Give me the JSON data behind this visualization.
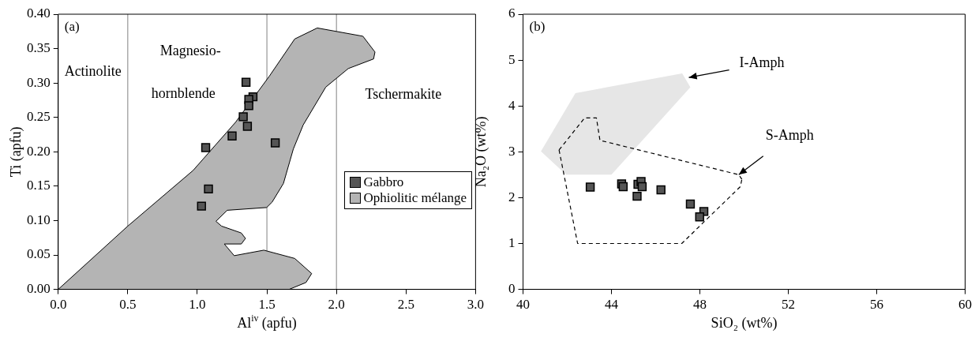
{
  "chart_data": [
    {
      "type": "scatter",
      "xlabel": "Al$^{iv}$ (apfu)",
      "ylabel": "Ti (apfu)",
      "legend": "right",
      "grid": false,
      "xlim": [
        0,
        3
      ],
      "xticks": [
        {
          "value": 0,
          "label": "0.0"
        },
        {
          "value": 0.5,
          "label": "0.5"
        },
        {
          "value": 1,
          "label": "1.0"
        },
        {
          "value": 1.5,
          "label": "1.5"
        },
        {
          "value": 2,
          "label": "2.0"
        },
        {
          "value": 2.5,
          "label": "2.5"
        },
        {
          "value": 3,
          "label": "3.0"
        }
      ],
      "ylim": [
        0,
        0.4
      ],
      "yticks": [
        {
          "value": 0,
          "label": "0.00"
        },
        {
          "value": 0.05,
          "label": "0.05"
        },
        {
          "value": 0.1,
          "label": "0.10"
        },
        {
          "value": 0.15,
          "label": "0.15"
        },
        {
          "value": 0.2,
          "label": "0.20"
        },
        {
          "value": 0.25,
          "label": "0.25"
        },
        {
          "value": 0.3,
          "label": "0.30"
        },
        {
          "value": 0.35,
          "label": "0.35"
        },
        {
          "value": 0.4,
          "label": "0.40"
        }
      ],
      "ref_lines": [
        {
          "axis": "x",
          "value": 0.5,
          "color": "#808080"
        },
        {
          "axis": "x",
          "value": 1.5,
          "color": "#808080"
        },
        {
          "axis": "x",
          "value": 2,
          "color": "#808080"
        }
      ],
      "annotations": [
        "(a)",
        "Actinolite",
        "Magnesio-",
        "hornblende",
        "Tschermakite"
      ],
      "series": [
        {
          "name": "Gabbro",
          "type": "scatter",
          "marker": "square",
          "color": "#555555",
          "x": [
            1.35,
            1.4,
            1.37,
            1.37,
            1.33,
            1.36,
            1.25,
            1.06,
            1.56,
            1.08,
            1.03
          ],
          "values": [
            0.301,
            0.28,
            0.276,
            0.267,
            0.251,
            0.237,
            0.223,
            0.206,
            0.213,
            0.146,
            0.121
          ]
        },
        {
          "name": "Ophiolitic mélange",
          "type": "area",
          "color": "#b4b4b4",
          "line_style": "solid",
          "x": [
            0,
            0.5,
            0.97,
            1.275,
            1.518,
            1.7,
            1.862,
            2.19,
            2.277,
            2.267,
            2.085,
            1.923,
            1.761,
            1.69,
            1.619,
            1.538,
            1.498,
            1.215,
            1.134,
            1.174,
            1.316,
            1.346,
            1.316,
            1.194,
            1.265,
            1.478,
            1.7,
            1.822,
            1.781,
            1.66,
            0
          ],
          "values": [
            0,
            0.092,
            0.173,
            0.243,
            0.31,
            0.364,
            0.38,
            0.368,
            0.345,
            0.335,
            0.321,
            0.294,
            0.239,
            0.204,
            0.154,
            0.127,
            0.119,
            0.115,
            0.099,
            0.092,
            0.082,
            0.074,
            0.066,
            0.066,
            0.049,
            0.057,
            0.045,
            0.023,
            0.01,
            0,
            0
          ]
        }
      ]
    },
    {
      "type": "scatter",
      "xlabel": "SiO₂ (wt%)",
      "ylabel": "Na₂O (wt%)",
      "grid": false,
      "xlim": [
        40,
        60
      ],
      "xticks": [
        40,
        44,
        48,
        52,
        56,
        60
      ],
      "ylim": [
        0,
        6
      ],
      "yticks": [
        0,
        1,
        2,
        3,
        4,
        5,
        6
      ],
      "annotations": [
        "(b)",
        {
          "text": "I-Amph",
          "x": 47.5,
          "y": 4.62
        },
        {
          "text": "S-Amph",
          "x": 49.76,
          "y": 2.5
        }
      ],
      "series": [
        {
          "type": "scatter",
          "marker": "square",
          "color": "#555555",
          "x": [
            43.04,
            44.46,
            44.53,
            45.2,
            45.34,
            45.39,
            45.16,
            46.24,
            47.57,
            48.18,
            47.99
          ],
          "values": [
            2.23,
            2.3,
            2.24,
            2.29,
            2.35,
            2.24,
            2.03,
            2.17,
            1.86,
            1.7,
            1.58
          ]
        },
        {
          "type": "line",
          "color": "#000000",
          "line_style": "dashed",
          "x": [
            41.63,
            42.79,
            43.32,
            43.48,
            49.76,
            49.9
          ],
          "values": [
            3.04,
            3.74,
            3.74,
            3.25,
            2.5,
            2.4
          ]
        },
        {
          "type": "line",
          "color": "#000000",
          "line_style": "dashed",
          "x": [
            41.63,
            42.47,
            47.18,
            49.83,
            49.9
          ],
          "values": [
            3.04,
            1,
            1,
            2.24,
            2.4
          ]
        },
        {
          "type": "area",
          "color": "#e6e6e6",
          "x": [
            40.81,
            42.37,
            47.2,
            47.57,
            44.0,
            41.95,
            40.81
          ],
          "values": [
            3.01,
            4.28,
            4.71,
            4.41,
            2.5,
            2.5,
            3.01
          ]
        }
      ]
    }
  ]
}
